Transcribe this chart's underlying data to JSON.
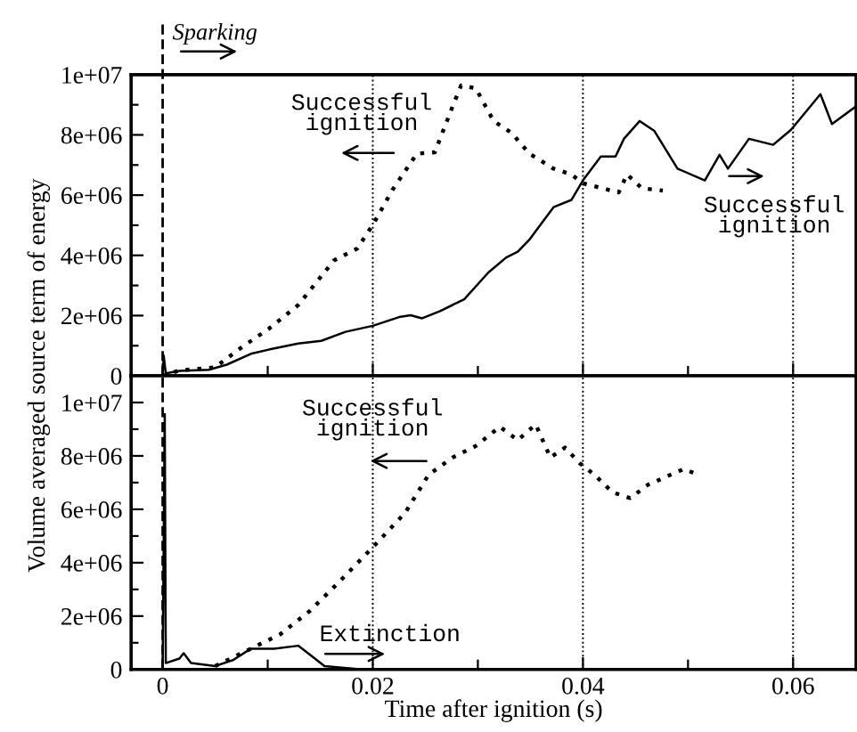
{
  "chart_data": [
    {
      "type": "line",
      "xlim": [
        -0.003,
        0.066
      ],
      "ylim": [
        0,
        10000000
      ],
      "xticks": [
        0,
        {
          "value": 0.01,
          "label": null
        },
        0.02,
        {
          "value": 0.03,
          "label": null
        },
        0.04,
        {
          "value": 0.05,
          "label": null
        },
        0.06
      ],
      "yticks": [
        {
          "value": 0,
          "label": "0"
        },
        {
          "value": 1000000,
          "label": null
        },
        {
          "value": 2000000,
          "label": "2e+06"
        },
        {
          "value": 3000000,
          "label": null
        },
        {
          "value": 4000000,
          "label": "4e+06"
        },
        {
          "value": 5000000,
          "label": null
        },
        {
          "value": 6000000,
          "label": "6e+06"
        },
        {
          "value": 7000000,
          "label": null
        },
        {
          "value": 8000000,
          "label": "8e+06"
        },
        {
          "value": 9000000,
          "label": null
        },
        {
          "value": 10000000,
          "label": "1e+07"
        }
      ],
      "tick_labels": "y",
      "grid": "x",
      "legend": false,
      "ref_lines": [
        {
          "axis": "x",
          "value": 0,
          "line_style": "dashed",
          "color": "#000000"
        }
      ],
      "annotations": [
        "Sparking",
        "Successful\nignition",
        "Successful\nignition"
      ],
      "series": [
        {
          "color": "#000000",
          "line_style": "solid",
          "x": [
            0,
            0.0001,
            0.0003,
            0.0016,
            0.0044,
            0.0061,
            0.0084,
            0.0101,
            0.0129,
            0.0151,
            0.0174,
            0.02,
            0.0225,
            0.0236,
            0.0247,
            0.0264,
            0.0287,
            0.031,
            0.0327,
            0.0338,
            0.0349,
            0.0372,
            0.0389,
            0.04,
            0.0417,
            0.0431,
            0.0439,
            0.0454,
            0.0468,
            0.049,
            0.0516,
            0.053,
            0.0538,
            0.0558,
            0.0581,
            0.0598,
            0.0626,
            0.0637,
            0.066
          ],
          "values": [
            0,
            670000,
            80000,
            160000,
            200000,
            370000,
            730000,
            870000,
            1070000,
            1160000,
            1460000,
            1660000,
            1950000,
            2010000,
            1910000,
            2150000,
            2540000,
            3430000,
            3930000,
            4120000,
            4520000,
            5600000,
            5840000,
            6490000,
            7280000,
            7280000,
            7870000,
            8460000,
            8130000,
            6880000,
            6490000,
            7340000,
            6880000,
            7870000,
            7670000,
            8170000,
            9350000,
            8360000,
            8950000
          ]
        },
        {
          "color": "#000000",
          "line_style": "dotted",
          "x": [
            0,
            0.0016,
            0.005,
            0.0072,
            0.0101,
            0.0129,
            0.0163,
            0.0185,
            0.02,
            0.0219,
            0.0242,
            0.0259,
            0.0276,
            0.0284,
            0.0298,
            0.0315,
            0.0332,
            0.0349,
            0.0372,
            0.0389,
            0.04,
            0.0434,
            0.0442,
            0.0456,
            0.0476
          ],
          "values": [
            0,
            180000,
            280000,
            870000,
            1560000,
            2350000,
            3830000,
            4220000,
            5010000,
            6190000,
            7380000,
            7420000,
            8950000,
            9640000,
            9550000,
            8460000,
            8070000,
            7380000,
            6880000,
            6690000,
            6390000,
            6090000,
            6690000,
            6230000,
            6150000
          ]
        }
      ]
    },
    {
      "type": "line",
      "xlim": [
        -0.003,
        0.066
      ],
      "ylim": [
        0,
        11000000
      ],
      "xticks": [
        0,
        {
          "value": 0.01,
          "label": null
        },
        0.02,
        {
          "value": 0.03,
          "label": null
        },
        0.04,
        {
          "value": 0.05,
          "label": null
        },
        0.06
      ],
      "yticks": [
        {
          "value": 0,
          "label": "0"
        },
        {
          "value": 1000000,
          "label": null
        },
        {
          "value": 2000000,
          "label": "2e+06"
        },
        {
          "value": 3000000,
          "label": null
        },
        {
          "value": 4000000,
          "label": "4e+06"
        },
        {
          "value": 5000000,
          "label": null
        },
        {
          "value": 6000000,
          "label": "6e+06"
        },
        {
          "value": 7000000,
          "label": null
        },
        {
          "value": 8000000,
          "label": "8e+06"
        },
        {
          "value": 9000000,
          "label": null
        },
        {
          "value": 10000000,
          "label": "1e+07"
        }
      ],
      "grid": "x",
      "legend": false,
      "xlabel": "Time after ignition (s)",
      "ylabel": "Volume averaged source term of energy",
      "ref_lines": [
        {
          "axis": "x",
          "value": 0,
          "line_style": "dashed",
          "color": "#000000"
        }
      ],
      "annotations": [
        "Successful\nignition",
        "Extinction"
      ],
      "series": [
        {
          "color": "#000000",
          "line_style": "solid",
          "x": [
            0,
            0.0002,
            0.0003,
            0.0016,
            0.002,
            0.0027,
            0.005,
            0.0067,
            0.0084,
            0.0106,
            0.0129,
            0.014,
            0.0154,
            0.0185,
            0.02
          ],
          "values": [
            0,
            9570000,
            240000,
            410000,
            610000,
            240000,
            130000,
            350000,
            780000,
            780000,
            890000,
            560000,
            130000,
            20000,
            0
          ]
        },
        {
          "color": "#000000",
          "line_style": "dotted",
          "x": [
            0.005,
            0.0084,
            0.0112,
            0.014,
            0.0168,
            0.02,
            0.0231,
            0.0253,
            0.0276,
            0.0298,
            0.0321,
            0.0338,
            0.0355,
            0.0369,
            0.0383,
            0.0397,
            0.0411,
            0.0428,
            0.0445,
            0.0462,
            0.0496,
            0.051
          ],
          "values": [
            130000,
            780000,
            1320000,
            2190000,
            3280000,
            4580000,
            5880000,
            7290000,
            7940000,
            8370000,
            9090000,
            8590000,
            9180000,
            7940000,
            8310000,
            7720000,
            7290000,
            6640000,
            6420000,
            6920000,
            7510000,
            7290000
          ]
        }
      ]
    }
  ]
}
